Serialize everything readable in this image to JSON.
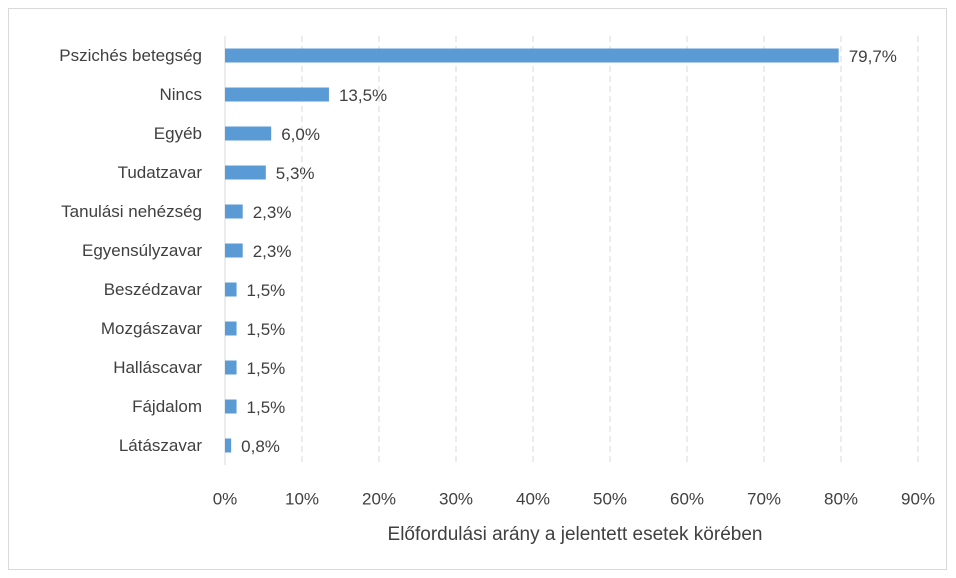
{
  "chart_data": {
    "type": "hbar",
    "x_label": "Előfordulási arány a jelentett esetek körében",
    "categories": [
      "Pszichés betegség",
      "Nincs",
      "Egyéb",
      "Tudatzavar",
      "Tanulási nehézség",
      "Egyensúlyzavar",
      "Beszédzavar",
      "Mozgászavar",
      "Halláscavar",
      "Fájdalom",
      "Látászavar"
    ],
    "values": [
      79.7,
      13.5,
      6.0,
      5.3,
      2.3,
      2.3,
      1.5,
      1.5,
      1.5,
      1.5,
      0.8
    ],
    "value_labels": [
      "79,7%",
      "13,5%",
      "6,0%",
      "5,3%",
      "2,3%",
      "2,3%",
      "1,5%",
      "1,5%",
      "1,5%",
      "1,5%",
      "0,8%"
    ],
    "color": "#5b9bd5",
    "xlim": [
      0,
      90
    ],
    "xticks": [
      {
        "value": 0,
        "label": "0%"
      },
      {
        "value": 10,
        "label": "10%"
      },
      {
        "value": 20,
        "label": "20%"
      },
      {
        "value": 30,
        "label": "30%"
      },
      {
        "value": 40,
        "label": "40%"
      },
      {
        "value": 50,
        "label": "50%"
      },
      {
        "value": 60,
        "label": "60%"
      },
      {
        "value": 70,
        "label": "70%"
      },
      {
        "value": 80,
        "label": "80%"
      },
      {
        "value": 90,
        "label": "90%"
      }
    ],
    "grid": true
  }
}
